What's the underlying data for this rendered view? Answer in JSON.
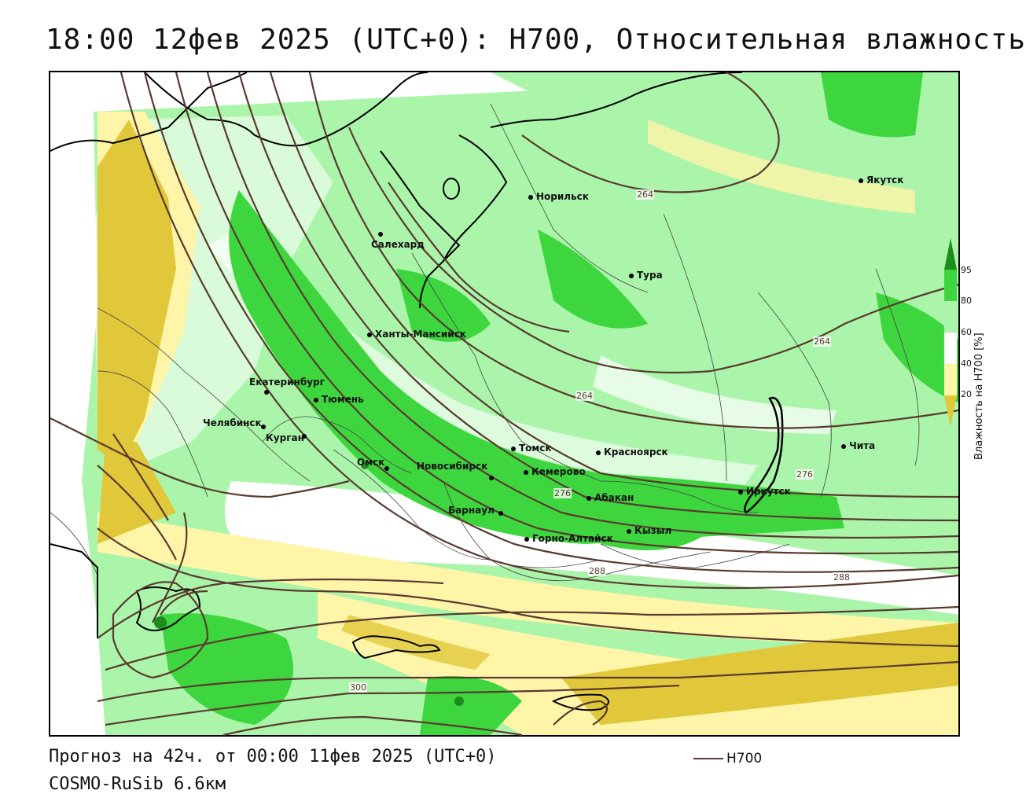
{
  "title": "18:00 12фев 2025 (UTC+0): H700, Относительная влажность",
  "footer": {
    "forecast": "Прогноз на 42ч. от 00:00 11фев 2025 (UTC+0)",
    "model": "COSMO-RuSib 6.6км",
    "line_legend_label": "H700"
  },
  "legend": {
    "title": "Влажность на H700 [%]",
    "ticks": [
      "95",
      "80",
      "60",
      "40",
      "20"
    ],
    "colors": {
      "over_95": "#1e8c1e",
      "80_95": "#3ed63e",
      "60_80": "#aaf5aa",
      "40_60": "#ffffff",
      "20_40": "#fff5a8",
      "under_20": "#e0c83a"
    }
  },
  "colors": {
    "isohypse": "#5a3a30",
    "coast": "#000000",
    "border": "#444444"
  },
  "cities": [
    {
      "name": "Норильск"
    },
    {
      "name": "Якутск"
    },
    {
      "name": "Салехард"
    },
    {
      "name": "Тура"
    },
    {
      "name": "Ханты-Мансийск"
    },
    {
      "name": "Екатеринбург"
    },
    {
      "name": "Тюмень"
    },
    {
      "name": "Челябинск"
    },
    {
      "name": "Курган"
    },
    {
      "name": "Омск"
    },
    {
      "name": "Новосибирск"
    },
    {
      "name": "Томск"
    },
    {
      "name": "Кемерово"
    },
    {
      "name": "Красноярск"
    },
    {
      "name": "Барнаул"
    },
    {
      "name": "Абакан"
    },
    {
      "name": "Кызыл"
    },
    {
      "name": "Горно-Алтайск"
    },
    {
      "name": "Иркутск"
    },
    {
      "name": "Чита"
    }
  ],
  "isohypse_labels": [
    "264",
    "264",
    "264",
    "276",
    "276",
    "288",
    "288",
    "300"
  ]
}
